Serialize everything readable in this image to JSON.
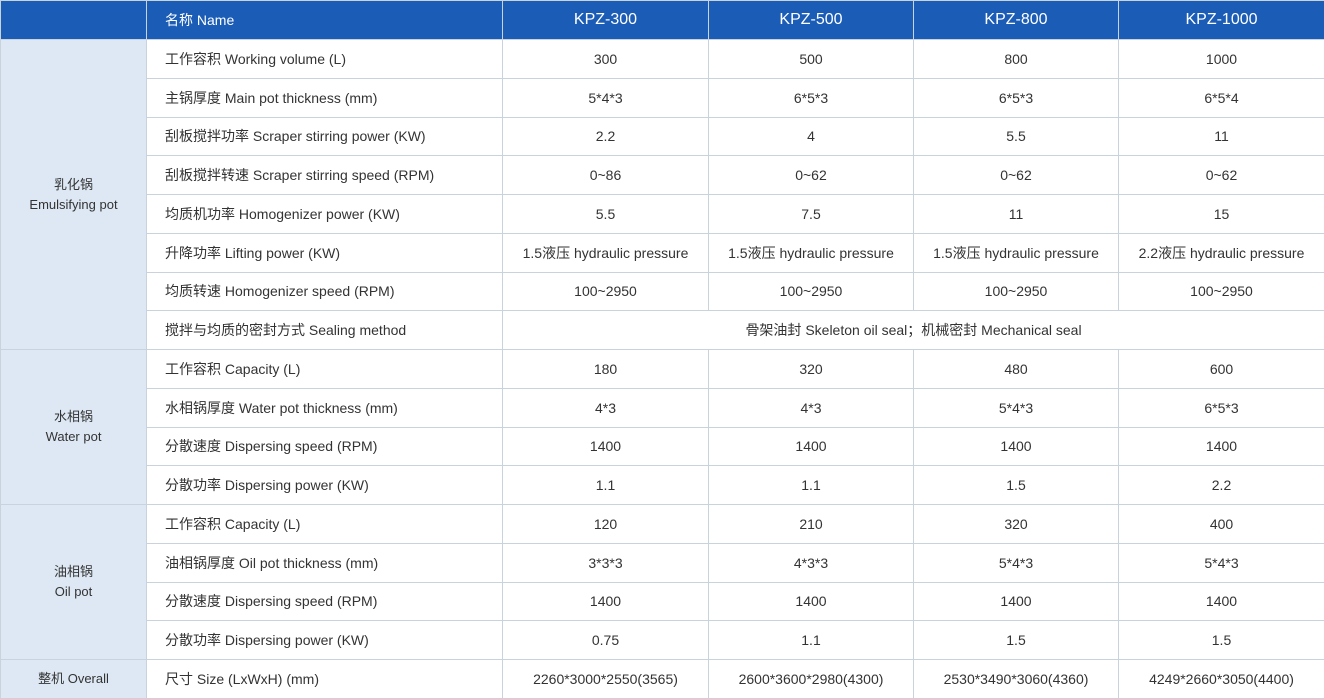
{
  "header": {
    "name": "名称 Name",
    "models": [
      "KPZ-300",
      "KPZ-500",
      "KPZ-800",
      "KPZ-1000"
    ]
  },
  "groups": [
    {
      "label": [
        "乳化锅",
        "Emulsifying pot"
      ],
      "rows": [
        {
          "name": "工作容积 Working volume (L)",
          "values": [
            "300",
            "500",
            "800",
            "1000"
          ]
        },
        {
          "name": "主锅厚度 Main pot thickness (mm)",
          "values": [
            "5*4*3",
            "6*5*3",
            "6*5*3",
            "6*5*4"
          ]
        },
        {
          "name": "刮板搅拌功率 Scraper stirring power (KW)",
          "values": [
            "2.2",
            "4",
            "5.5",
            "11"
          ]
        },
        {
          "name": "刮板搅拌转速 Scraper stirring speed (RPM)",
          "values": [
            "0~86",
            "0~62",
            "0~62",
            "0~62"
          ]
        },
        {
          "name": "均质机功率 Homogenizer power (KW)",
          "values": [
            "5.5",
            "7.5",
            "11",
            "15"
          ]
        },
        {
          "name": "升降功率 Lifting power (KW)",
          "values": [
            "1.5液压 hydraulic pressure",
            "1.5液压 hydraulic pressure",
            "1.5液压 hydraulic pressure",
            "2.2液压 hydraulic pressure"
          ]
        },
        {
          "name": "均质转速 Homogenizer speed (RPM)",
          "values": [
            "100~2950",
            "100~2950",
            "100~2950",
            "100~2950"
          ]
        },
        {
          "name": "搅拌与均质的密封方式 Sealing method",
          "values": [
            "骨架油封 Skeleton oil seal；机械密封 Mechanical seal"
          ]
        }
      ]
    },
    {
      "label": [
        "水相锅",
        "Water pot"
      ],
      "rows": [
        {
          "name": "工作容积 Capacity (L)",
          "values": [
            "180",
            "320",
            "480",
            "600"
          ]
        },
        {
          "name": "水相锅厚度 Water pot thickness (mm)",
          "values": [
            "4*3",
            "4*3",
            "5*4*3",
            "6*5*3"
          ]
        },
        {
          "name": "分散速度 Dispersing speed (RPM)",
          "values": [
            "1400",
            "1400",
            "1400",
            "1400"
          ]
        },
        {
          "name": "分散功率 Dispersing power (KW)",
          "values": [
            "1.1",
            "1.1",
            "1.5",
            "2.2"
          ]
        }
      ]
    },
    {
      "label": [
        "油相锅",
        "Oil pot"
      ],
      "rows": [
        {
          "name": "工作容积 Capacity (L)",
          "values": [
            "120",
            "210",
            "320",
            "400"
          ]
        },
        {
          "name": "油相锅厚度 Oil pot thickness (mm)",
          "values": [
            "3*3*3",
            "4*3*3",
            "5*4*3",
            "5*4*3"
          ]
        },
        {
          "name": "分散速度 Dispersing speed (RPM)",
          "values": [
            "1400",
            "1400",
            "1400",
            "1400"
          ]
        },
        {
          "name": "分散功率 Dispersing power (KW)",
          "values": [
            "0.75",
            "1.1",
            "1.5",
            "1.5"
          ]
        }
      ]
    },
    {
      "label": [
        "整机 Overall"
      ],
      "rows": [
        {
          "name": "尺寸 Size (LxWxH) (mm)",
          "values": [
            "2260*3000*2550(3565)",
            "2600*3600*2980(4300)",
            "2530*3490*3060(4360)",
            "4249*2660*3050(4400)"
          ]
        }
      ]
    }
  ]
}
